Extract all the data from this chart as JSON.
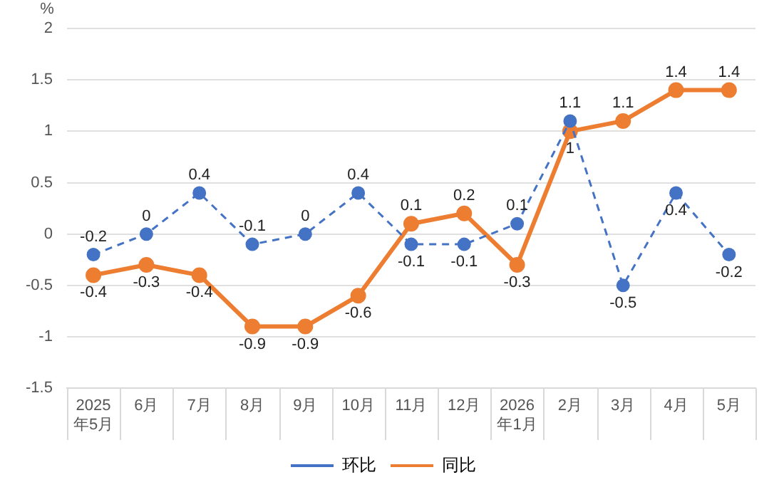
{
  "chart_data": {
    "type": "line",
    "ylabel": "%",
    "categories": [
      "2025年5月",
      "6月",
      "7月",
      "8月",
      "9月",
      "10月",
      "11月",
      "12月",
      "2026年1月",
      "2月",
      "3月",
      "4月",
      "5月"
    ],
    "series": [
      {
        "name": "环比",
        "color": "#4472c4",
        "line_style": "dashed",
        "values": [
          -0.2,
          0,
          0.4,
          -0.1,
          0,
          0.4,
          -0.1,
          -0.1,
          0.1,
          1.1,
          -0.5,
          0.4,
          -0.2
        ]
      },
      {
        "name": "同比",
        "color": "#ed7d31",
        "line_style": "solid",
        "values": [
          -0.4,
          -0.3,
          -0.4,
          -0.9,
          -0.9,
          -0.6,
          0.1,
          0.2,
          -0.3,
          1,
          1.1,
          1.4,
          1.4
        ]
      }
    ],
    "ylim": [
      -1.5,
      2
    ],
    "yticks": [
      -1.5,
      -1,
      -0.5,
      0,
      0.5,
      1,
      1.5,
      2
    ],
    "grid": "y",
    "legend": "bottom",
    "marker": "circle",
    "data_labels": true
  }
}
